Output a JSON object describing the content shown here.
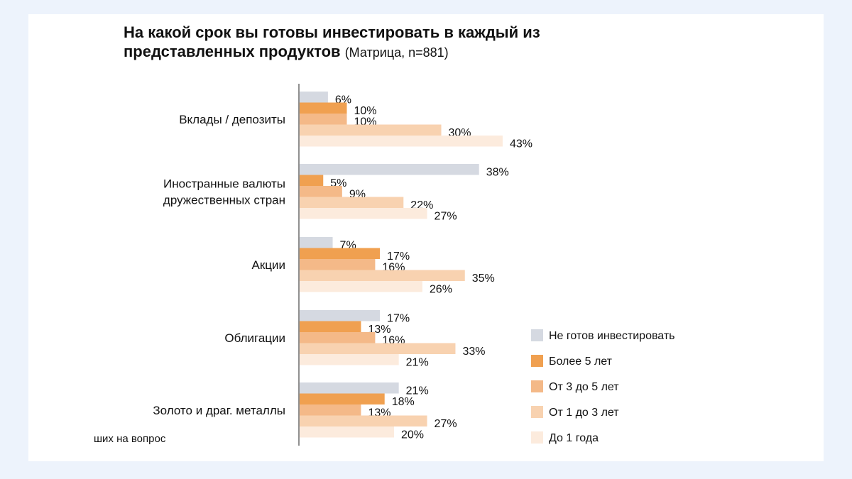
{
  "title": {
    "line1": "На какой срок вы готовы инвестировать в каждый из",
    "line2": "представленных продуктов",
    "note": "(Матрица, n=881)"
  },
  "footnote": "ших на вопрос",
  "chart_data": {
    "type": "bar",
    "orientation": "horizontal",
    "categories": [
      [
        "Вклады / депозиты"
      ],
      [
        "Иностранные валюты",
        "дружественных стран"
      ],
      [
        "Акции"
      ],
      [
        "Облигации"
      ],
      [
        "Золото и драг. металлы"
      ]
    ],
    "series": [
      {
        "name": "Не готов инвестировать",
        "color": "#d5d9e1",
        "values": [
          6,
          38,
          7,
          17,
          21
        ]
      },
      {
        "name": "Более 5 лет",
        "color": "#f0a050",
        "values": [
          10,
          5,
          17,
          13,
          18
        ]
      },
      {
        "name": "От 3 до 5 лет",
        "color": "#f4b988",
        "values": [
          10,
          9,
          16,
          16,
          13
        ]
      },
      {
        "name": "От 1 до 3 лет",
        "color": "#f8d2b0",
        "values": [
          30,
          22,
          35,
          33,
          27
        ]
      },
      {
        "name": "До 1 года",
        "color": "#fcebdd",
        "values": [
          43,
          27,
          26,
          21,
          20
        ]
      }
    ],
    "value_suffix": "%",
    "legend_position": "right",
    "grid": false
  }
}
